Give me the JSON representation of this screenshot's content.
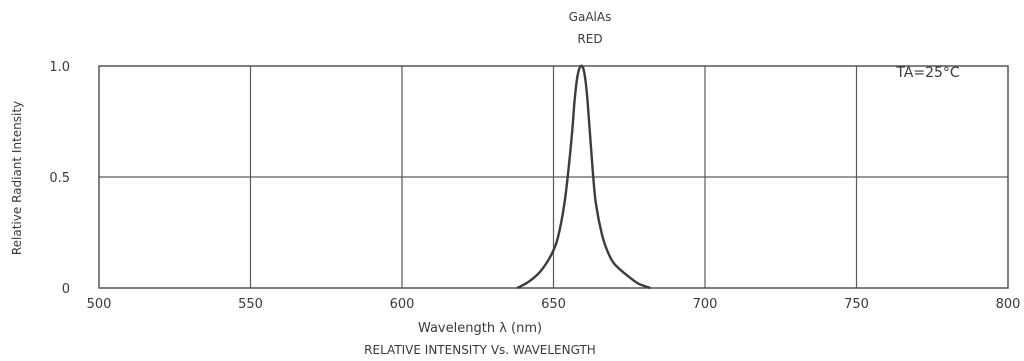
{
  "chart_data": {
    "type": "line",
    "title": "RELATIVE INTENSITY Vs. WAVELENGTH",
    "xlabel": "Wavelength λ (nm)",
    "ylabel": "Relative Radiant Intensity",
    "xlim": [
      500,
      800
    ],
    "ylim": [
      0,
      1.0
    ],
    "x_ticks": [
      500,
      550,
      600,
      650,
      700,
      750,
      800
    ],
    "y_ticks": [
      0,
      0.5,
      1.0
    ],
    "y_tick_labels": [
      "0",
      "0.5",
      "1.0"
    ],
    "grid": true,
    "annotations": {
      "series_label_line1": "GaAlAs",
      "series_label_line2": "RED",
      "condition": "TA=25°C"
    },
    "series": [
      {
        "name": "GaAlAs RED",
        "x": [
          638,
          642,
          646,
          650,
          652,
          654,
          656,
          657,
          658,
          659,
          660,
          661,
          662,
          663,
          664,
          666,
          668,
          670,
          674,
          678,
          682
        ],
        "y": [
          0.0,
          0.03,
          0.08,
          0.17,
          0.26,
          0.42,
          0.68,
          0.85,
          0.96,
          1.0,
          0.98,
          0.88,
          0.7,
          0.52,
          0.38,
          0.24,
          0.16,
          0.11,
          0.06,
          0.02,
          0.0
        ]
      }
    ]
  },
  "colors": {
    "axes": "#4a4a4a",
    "grid": "#5a5a5a",
    "curve": "#3c3c3c"
  }
}
